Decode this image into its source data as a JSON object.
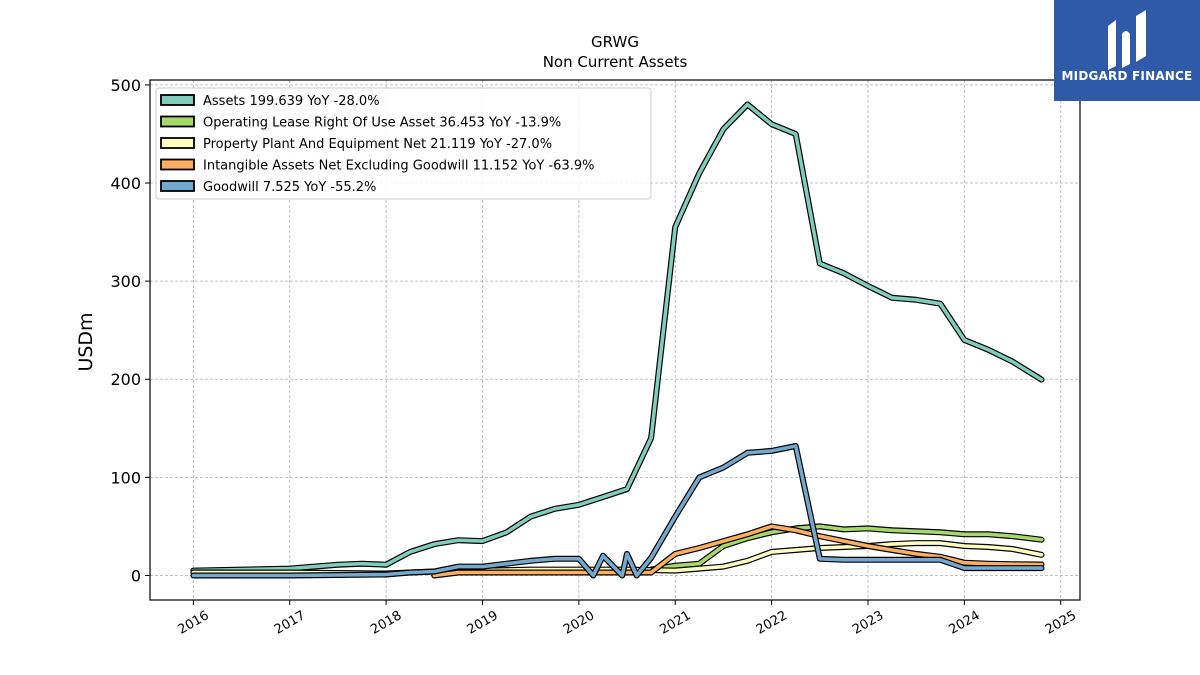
{
  "brand": {
    "name": "MIDGARD FINANCE",
    "bg_color": "#2f5aa8"
  },
  "chart_data": {
    "type": "line",
    "title": "GRWG",
    "subtitle": "Non Current  Assets",
    "ylabel": "USDm",
    "xlabel": "",
    "ylim": [
      -25,
      505
    ],
    "xlim": [
      2015.55,
      2025.2
    ],
    "yticks": [
      0,
      100,
      200,
      300,
      400,
      500
    ],
    "xticks": [
      2016,
      2017,
      2018,
      2019,
      2020,
      2021,
      2022,
      2023,
      2024,
      2025
    ],
    "grid": true,
    "legend_position": "top-left",
    "series": [
      {
        "name": "Assets  199.639 YoY -28.0%",
        "color": "#7fcdbb",
        "points": [
          [
            2016.0,
            5
          ],
          [
            2017.0,
            7
          ],
          [
            2017.5,
            11
          ],
          [
            2017.75,
            12
          ],
          [
            2018.0,
            11
          ],
          [
            2018.25,
            24
          ],
          [
            2018.5,
            32
          ],
          [
            2018.75,
            36
          ],
          [
            2019.0,
            35
          ],
          [
            2019.25,
            44
          ],
          [
            2019.5,
            60
          ],
          [
            2019.75,
            68
          ],
          [
            2020.0,
            72
          ],
          [
            2020.25,
            80
          ],
          [
            2020.5,
            88
          ],
          [
            2020.75,
            140
          ],
          [
            2021.0,
            355
          ],
          [
            2021.25,
            410
          ],
          [
            2021.5,
            455
          ],
          [
            2021.75,
            480
          ],
          [
            2022.0,
            460
          ],
          [
            2022.25,
            450
          ],
          [
            2022.5,
            318
          ],
          [
            2022.75,
            308
          ],
          [
            2023.0,
            295
          ],
          [
            2023.25,
            283
          ],
          [
            2023.5,
            281
          ],
          [
            2023.75,
            277
          ],
          [
            2024.0,
            240
          ],
          [
            2024.25,
            230
          ],
          [
            2024.5,
            218
          ],
          [
            2024.8,
            199.639
          ]
        ]
      },
      {
        "name": "Operating Lease Right Of Use Asset  36.453 YoY -13.9%",
        "color": "#a6d96a",
        "points": [
          [
            2020.75,
            6
          ],
          [
            2021.0,
            10
          ],
          [
            2021.25,
            12
          ],
          [
            2021.5,
            30
          ],
          [
            2021.75,
            38
          ],
          [
            2022.0,
            44
          ],
          [
            2022.25,
            48
          ],
          [
            2022.5,
            50
          ],
          [
            2022.75,
            47
          ],
          [
            2023.0,
            48
          ],
          [
            2023.25,
            46
          ],
          [
            2023.5,
            45
          ],
          [
            2023.75,
            44
          ],
          [
            2024.0,
            42
          ],
          [
            2024.25,
            42
          ],
          [
            2024.5,
            40
          ],
          [
            2024.8,
            36.453
          ]
        ]
      },
      {
        "name": "Property Plant And Equipment Net  21.119 YoY -27.0%",
        "color": "#ffffbf",
        "points": [
          [
            2016.0,
            3
          ],
          [
            2017.0,
            3
          ],
          [
            2018.0,
            2
          ],
          [
            2018.5,
            4
          ],
          [
            2019.0,
            5
          ],
          [
            2019.5,
            6
          ],
          [
            2020.0,
            6
          ],
          [
            2020.5,
            6
          ],
          [
            2021.0,
            5
          ],
          [
            2021.5,
            9
          ],
          [
            2021.75,
            15
          ],
          [
            2022.0,
            24
          ],
          [
            2022.25,
            26
          ],
          [
            2022.5,
            28
          ],
          [
            2022.75,
            29
          ],
          [
            2023.0,
            30
          ],
          [
            2023.25,
            32
          ],
          [
            2023.5,
            33
          ],
          [
            2023.75,
            33
          ],
          [
            2024.0,
            30
          ],
          [
            2024.25,
            29
          ],
          [
            2024.5,
            27
          ],
          [
            2024.8,
            21.119
          ]
        ]
      },
      {
        "name": "Intangible Assets Net Excluding Goodwill  11.152 YoY -63.9%",
        "color": "#fdae61",
        "points": [
          [
            2018.5,
            0
          ],
          [
            2018.75,
            3
          ],
          [
            2019.0,
            3
          ],
          [
            2019.5,
            3
          ],
          [
            2020.0,
            3
          ],
          [
            2020.5,
            3
          ],
          [
            2020.75,
            3
          ],
          [
            2021.0,
            22
          ],
          [
            2021.25,
            28
          ],
          [
            2021.5,
            35
          ],
          [
            2021.75,
            42
          ],
          [
            2022.0,
            50
          ],
          [
            2022.25,
            46
          ],
          [
            2022.5,
            40
          ],
          [
            2022.75,
            35
          ],
          [
            2023.0,
            30
          ],
          [
            2023.25,
            26
          ],
          [
            2023.5,
            22
          ],
          [
            2023.75,
            19
          ],
          [
            2024.0,
            13
          ],
          [
            2024.25,
            12
          ],
          [
            2024.5,
            11.5
          ],
          [
            2024.8,
            11.152
          ]
        ]
      },
      {
        "name": "Goodwill  7.525 YoY -55.2%",
        "color": "#74a9cf",
        "points": [
          [
            2016.0,
            0
          ],
          [
            2017.0,
            0
          ],
          [
            2018.0,
            1
          ],
          [
            2018.25,
            3
          ],
          [
            2018.5,
            4
          ],
          [
            2018.75,
            9
          ],
          [
            2019.0,
            9
          ],
          [
            2019.25,
            12
          ],
          [
            2019.5,
            15
          ],
          [
            2019.75,
            17
          ],
          [
            2020.0,
            17
          ],
          [
            2020.15,
            0
          ],
          [
            2020.25,
            20
          ],
          [
            2020.45,
            0
          ],
          [
            2020.5,
            22
          ],
          [
            2020.6,
            0
          ],
          [
            2020.75,
            18
          ],
          [
            2021.0,
            60
          ],
          [
            2021.25,
            100
          ],
          [
            2021.5,
            110
          ],
          [
            2021.75,
            125
          ],
          [
            2022.0,
            127
          ],
          [
            2022.25,
            132
          ],
          [
            2022.5,
            17
          ],
          [
            2022.75,
            16
          ],
          [
            2023.0,
            16
          ],
          [
            2023.25,
            16
          ],
          [
            2023.5,
            16
          ],
          [
            2023.75,
            16
          ],
          [
            2024.0,
            7.5
          ],
          [
            2024.25,
            7.5
          ],
          [
            2024.5,
            7.5
          ],
          [
            2024.8,
            7.525
          ]
        ]
      }
    ]
  }
}
